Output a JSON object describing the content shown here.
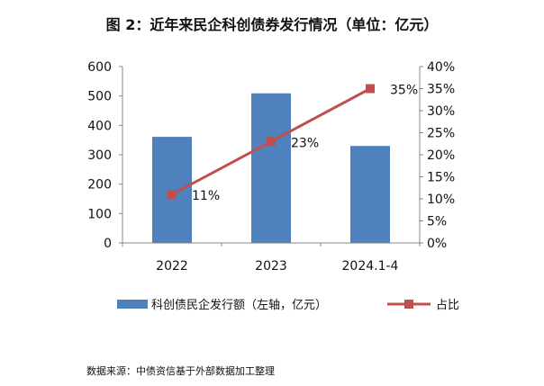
{
  "chart_data": {
    "type": "bar+line",
    "title": "图 2：近年来民企科创债券发行情况（单位：亿元）",
    "categories": [
      "2022",
      "2023",
      "2024.1-4"
    ],
    "series": [
      {
        "name": "科创债民企发行额（左轴，亿元）",
        "type": "bar",
        "axis": "left",
        "values": [
          361,
          509,
          330
        ],
        "color": "#4F81BD"
      },
      {
        "name": "占比",
        "type": "line",
        "axis": "right",
        "values": [
          0.11,
          0.23,
          0.35
        ],
        "labels": [
          "11%",
          "23%",
          "35%"
        ],
        "color": "#C0504D"
      }
    ],
    "left_axis": {
      "ylim": [
        0,
        600
      ],
      "ticks": [
        "0",
        "100",
        "200",
        "300",
        "400",
        "500",
        "600"
      ]
    },
    "right_axis": {
      "ylim": [
        0,
        0.4
      ],
      "ticks": [
        "0%",
        "5%",
        "10%",
        "15%",
        "20%",
        "25%",
        "30%",
        "35%",
        "40%"
      ]
    },
    "grid": false,
    "legend": "bottom"
  },
  "source": "数据来源：中债资信基于外部数据加工整理"
}
